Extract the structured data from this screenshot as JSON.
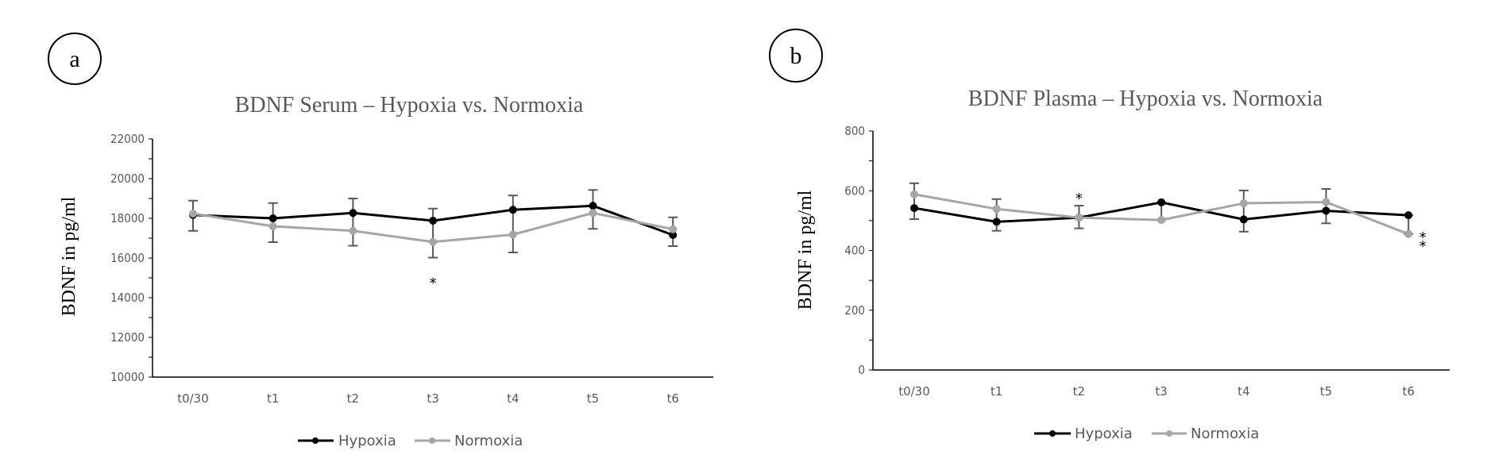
{
  "chart_data": [
    {
      "panel": "a",
      "type": "line",
      "title": "BDNF Serum – Hypoxia vs. Normoxia",
      "xlabel": "",
      "ylabel": "BDNF in pg/ml",
      "ylim": [
        10000,
        22000
      ],
      "yticks": [
        10000,
        12000,
        14000,
        16000,
        18000,
        20000,
        22000
      ],
      "yminor_step": 1000,
      "grid": false,
      "legend": "bottom-center",
      "categories": [
        "t0/30",
        "t1",
        "t2",
        "t3",
        "t4",
        "t5",
        "t6"
      ],
      "series": [
        {
          "name": "Hypoxia",
          "color": "#000000",
          "values": [
            18170,
            18000,
            18270,
            17880,
            18430,
            18630,
            17160
          ]
        },
        {
          "name": "Normoxia",
          "color": "#a6a6a6",
          "values": [
            18240,
            17600,
            17370,
            16810,
            17180,
            18270,
            17450
          ]
        }
      ],
      "error_bars": [
        {
          "category": "t0/30",
          "low": 17370,
          "high": 18890
        },
        {
          "category": "t1",
          "low": 16800,
          "high": 18770
        },
        {
          "category": "t2",
          "low": 16620,
          "high": 19000
        },
        {
          "category": "t3",
          "low": 16020,
          "high": 18490
        },
        {
          "category": "t4",
          "low": 16280,
          "high": 19150
        },
        {
          "category": "t5",
          "low": 17470,
          "high": 19430
        },
        {
          "category": "t6",
          "low": 16600,
          "high": 18050
        }
      ],
      "annotations": [
        {
          "category": "t3",
          "text": "*",
          "value": 14900
        }
      ]
    },
    {
      "panel": "b",
      "type": "line",
      "title": "BDNF Plasma – Hypoxia vs. Normoxia",
      "xlabel": "",
      "ylabel": "BDNF in pg/ml",
      "ylim": [
        0,
        800
      ],
      "yticks": [
        0,
        200,
        400,
        600,
        800
      ],
      "yminor_step": 100,
      "grid": false,
      "legend": "bottom-center",
      "categories": [
        "t0/30",
        "t1",
        "t2",
        "t3",
        "t4",
        "t5",
        "t6"
      ],
      "series": [
        {
          "name": "Hypoxia",
          "color": "#000000",
          "values": [
            542,
            496,
            510,
            561,
            504,
            533,
            518
          ]
        },
        {
          "name": "Normoxia",
          "color": "#a6a6a6",
          "values": [
            588,
            539,
            510,
            502,
            558,
            562,
            455
          ]
        }
      ],
      "error_bars": [
        {
          "category": "t0/30",
          "low": 505,
          "high": 625
        },
        {
          "category": "t1",
          "low": 466,
          "high": 572
        },
        {
          "category": "t2",
          "low": 474,
          "high": 550
        },
        {
          "category": "t3",
          "low": 502,
          "high": 561
        },
        {
          "category": "t4",
          "low": 463,
          "high": 601
        },
        {
          "category": "t5",
          "low": 491,
          "high": 606
        },
        {
          "category": "t6",
          "low": 455,
          "high": 518
        }
      ],
      "annotations": [
        {
          "category": "t2",
          "text": "*",
          "value": 585
        },
        {
          "category": "t6",
          "text": "*",
          "value": 455,
          "offset": "right"
        },
        {
          "category": "t6",
          "text": "*",
          "value": 425,
          "offset": "right"
        }
      ]
    }
  ]
}
